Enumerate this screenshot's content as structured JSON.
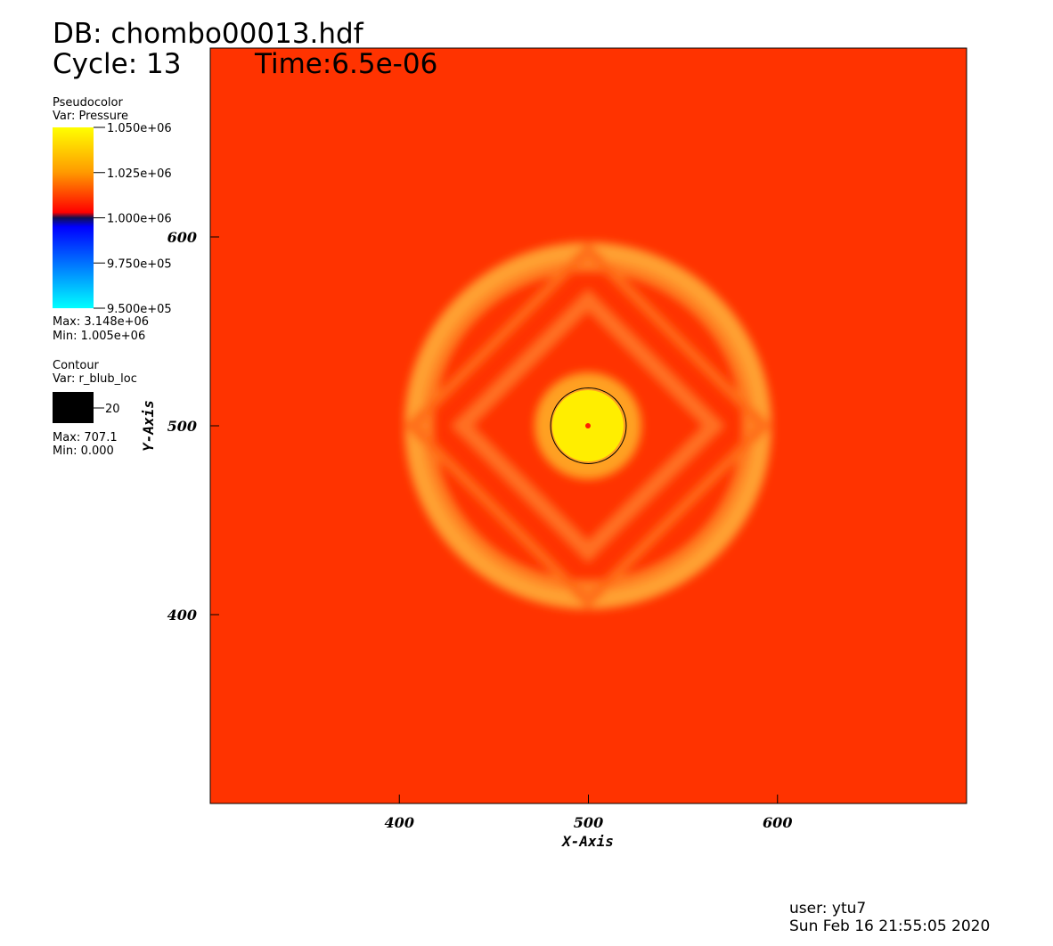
{
  "chart_data": {
    "type": "pseudocolor",
    "title": "DB: chombo00013.hdf",
    "cycle": "Cycle: 13",
    "time": "Time:6.5e-06",
    "x_label": "X-Axis",
    "y_label": "Y-Axis",
    "xlim": [
      300,
      700
    ],
    "ylim": [
      300,
      700
    ],
    "xticks": [
      400,
      500,
      600
    ],
    "yticks": [
      400,
      500,
      600
    ],
    "pseudocolor": {
      "plot": "Pseudocolor",
      "var": "Var: Pressure",
      "clim": [
        950000,
        1050000
      ],
      "ticks": [
        {
          "value": 1050000,
          "label": "1.050e+06"
        },
        {
          "value": 1025000,
          "label": "1.025e+06"
        },
        {
          "value": 1000000,
          "label": "1.000e+06"
        },
        {
          "value": 975000,
          "label": "9.750e+05"
        },
        {
          "value": 950000,
          "label": "9.500e+05"
        }
      ],
      "max": "Max: 3.148e+06",
      "min": "Min: 1.005e+06"
    },
    "contour": {
      "plot": "Contour",
      "var": "Var: r_blub_loc",
      "levels": [
        20
      ],
      "color": "#000000",
      "max": "Max: 707.1",
      "min": "Min: 0.000"
    },
    "user": "user: ytu7",
    "date": "Sun Feb 16 21:55:05 2020"
  }
}
